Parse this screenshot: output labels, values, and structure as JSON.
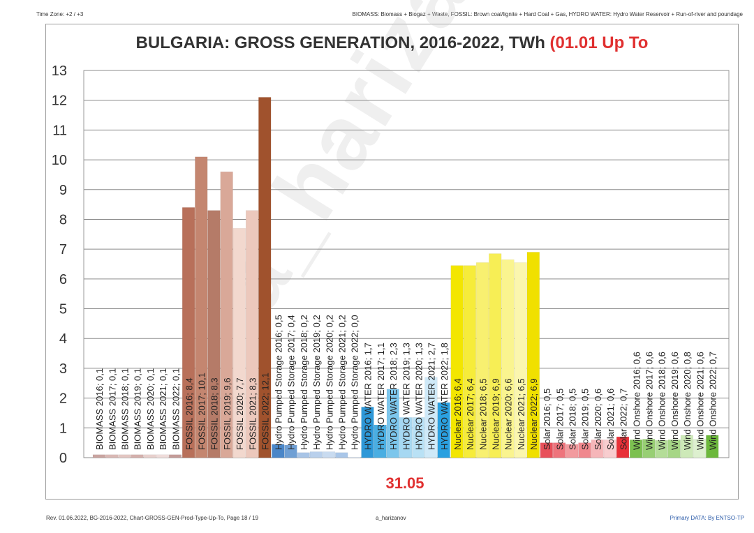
{
  "header": {
    "timezone": "Time Zone: +2 / +3",
    "note": "BIOMASS: Biomass + Biogaz + Waste, FOSSIL: Brown coal/lignite + Hard Coal + Gas, HYDRO WATER:  Hydro  Water Reservoir  + Run-of-river and poundage"
  },
  "title": {
    "main": "BULGARIA: GROSS GENERATION, 2016-2022, TWh ",
    "highlight": "(01.01 Up To"
  },
  "date_label": "31.05",
  "watermark": "a_harizanov",
  "footer": {
    "left": "Rev. 01.06.2022, BG-2016-2022, Chart-GROSS-GEN-Prod-Type-Up-To, Page 18 / 19",
    "center": "a_harizanov",
    "right": "Primary DATA: By ENTSO-TP"
  },
  "chart_data": {
    "type": "bar",
    "ylim": [
      0,
      13
    ],
    "yticks": [
      0,
      1,
      2,
      3,
      4,
      5,
      6,
      7,
      8,
      9,
      10,
      11,
      12,
      13
    ],
    "grid": true,
    "groups": [
      {
        "name": "BIOMASS",
        "colors": [
          "#c9a4a0",
          "#d9b8b4",
          "#e3c6c2",
          "#d4b0ac",
          "#e8d0cd",
          "#efdcda",
          "#c49c98"
        ],
        "bars": [
          {
            "label": "BIOMASS 2016; 0,1",
            "value": 0.1
          },
          {
            "label": "BIOMASS 2017; 0,1",
            "value": 0.1
          },
          {
            "label": "BIOMASS 2018; 0,1",
            "value": 0.1
          },
          {
            "label": "BIOMASS 2019; 0,1",
            "value": 0.1
          },
          {
            "label": "BIOMASS 2020; 0,1",
            "value": 0.1
          },
          {
            "label": "BIOMASS 2021; 0,1",
            "value": 0.1
          },
          {
            "label": "BIOMASS 2022; 0,1",
            "value": 0.1
          }
        ]
      },
      {
        "name": "FOSSIL",
        "colors": [
          "#b8705a",
          "#c48670",
          "#b57b68",
          "#d9a898",
          "#f2d8ce",
          "#ecc8bc",
          "#a0522d"
        ],
        "bars": [
          {
            "label": "FOSSIL 2016; 8,4",
            "value": 8.4
          },
          {
            "label": "FOSSIL 2017; 10,1",
            "value": 10.1
          },
          {
            "label": "FOSSIL 2018; 8,3",
            "value": 8.3
          },
          {
            "label": "FOSSIL 2019; 9,6",
            "value": 9.6
          },
          {
            "label": "FOSSIL 2020; 7,7",
            "value": 7.7
          },
          {
            "label": "FOSSIL 2021; 8,3",
            "value": 8.3
          },
          {
            "label": "FOSSIL 2022; 12,1",
            "value": 12.1
          }
        ]
      },
      {
        "name": "Hydro Pumped Storage",
        "colors": [
          "#4a86c8",
          "#6f9fd4",
          "#a8c4e6",
          "#b9d0ec",
          "#c9dbf0",
          "#a9c6e8",
          "#dce8f5"
        ],
        "bars": [
          {
            "label": "Hydro Pumped Storage 2016; 0,5",
            "value": 0.45
          },
          {
            "label": "Hydro Pumped Storage 2017; 0,4",
            "value": 0.42
          },
          {
            "label": "Hydro Pumped Storage 2018; 0,2",
            "value": 0.17
          },
          {
            "label": "Hydro Pumped Storage 2019; 0,2",
            "value": 0.2
          },
          {
            "label": "Hydro Pumped Storage 2020; 0,2",
            "value": 0.2
          },
          {
            "label": "Hydro Pumped Storage 2021; 0,2",
            "value": 0.17
          },
          {
            "label": "Hydro Pumped Storage 2022; 0,0",
            "value": 0.02
          }
        ]
      },
      {
        "name": "HYDRO WATER",
        "colors": [
          "#2e98d8",
          "#4aaee2",
          "#7cc6ec",
          "#a6d8f2",
          "#b9e1f5",
          "#cfe9f8",
          "#2aa0e0"
        ],
        "bars": [
          {
            "label": "HYDRO WATER 2016; 1,7",
            "value": 1.7
          },
          {
            "label": "HYDRO WATER 2017; 1,1",
            "value": 1.1
          },
          {
            "label": "HYDRO WATER 2018; 2,3",
            "value": 2.3
          },
          {
            "label": "HYDRO WATER 2019; 1,3",
            "value": 1.35
          },
          {
            "label": "HYDRO WATER 2020; 1,3",
            "value": 1.35
          },
          {
            "label": "HYDRO WATER 2021; 2,7",
            "value": 2.7
          },
          {
            "label": "HYDRO WATER 2022; 1,8",
            "value": 1.85
          }
        ]
      },
      {
        "name": "Nuclear",
        "colors": [
          "#f3e600",
          "#f6ec3a",
          "#f8f070",
          "#f7ee55",
          "#faf48f",
          "#fbf6ae",
          "#f0e000"
        ],
        "bars": [
          {
            "label": "Nuclear 2016; 6,4",
            "value": 6.45
          },
          {
            "label": "Nuclear 2017; 6,4",
            "value": 6.45
          },
          {
            "label": "Nuclear 2018; 6,5",
            "value": 6.55
          },
          {
            "label": "Nuclear 2019; 6,9",
            "value": 6.85
          },
          {
            "label": "Nuclear 2020; 6,6",
            "value": 6.65
          },
          {
            "label": "Nuclear 2021; 6,5",
            "value": 6.55
          },
          {
            "label": "Nuclear 2022; 6,9",
            "value": 6.9
          }
        ]
      },
      {
        "name": "Solar",
        "colors": [
          "#e8505a",
          "#ee747c",
          "#f29a9e",
          "#f0888e",
          "#f6b6b9",
          "#f8cdcf",
          "#e83038"
        ],
        "bars": [
          {
            "label": "Solar 2016; 0,5",
            "value": 0.5
          },
          {
            "label": "Solar 2017; 0,5",
            "value": 0.5
          },
          {
            "label": "Solar 2018; 0,5",
            "value": 0.45
          },
          {
            "label": "Solar 2019; 0,5",
            "value": 0.5
          },
          {
            "label": "Solar 2020; 0,6",
            "value": 0.6
          },
          {
            "label": "Solar 2021; 0,6",
            "value": 0.6
          },
          {
            "label": "Solar 2022; 0,7",
            "value": 0.7
          }
        ]
      },
      {
        "name": "Wind Onshore",
        "colors": [
          "#7cc050",
          "#98cf74",
          "#b4dd98",
          "#a6d686",
          "#cde9b8",
          "#ddf0cf",
          "#6cb83c"
        ],
        "bars": [
          {
            "label": "Wind Onshore 2016; 0,6",
            "value": 0.6
          },
          {
            "label": "Wind Onshore 2017; 0,6",
            "value": 0.62
          },
          {
            "label": "Wind Onshore 2018; 0,6",
            "value": 0.58
          },
          {
            "label": "Wind Onshore 2019; 0,6",
            "value": 0.6
          },
          {
            "label": "Wind Onshore 2020; 0,8",
            "value": 0.75
          },
          {
            "label": "Wind Onshore 2021; 0,6",
            "value": 0.62
          },
          {
            "label": "Wind Onshore 2022; 0,7",
            "value": 0.75
          }
        ]
      }
    ]
  }
}
